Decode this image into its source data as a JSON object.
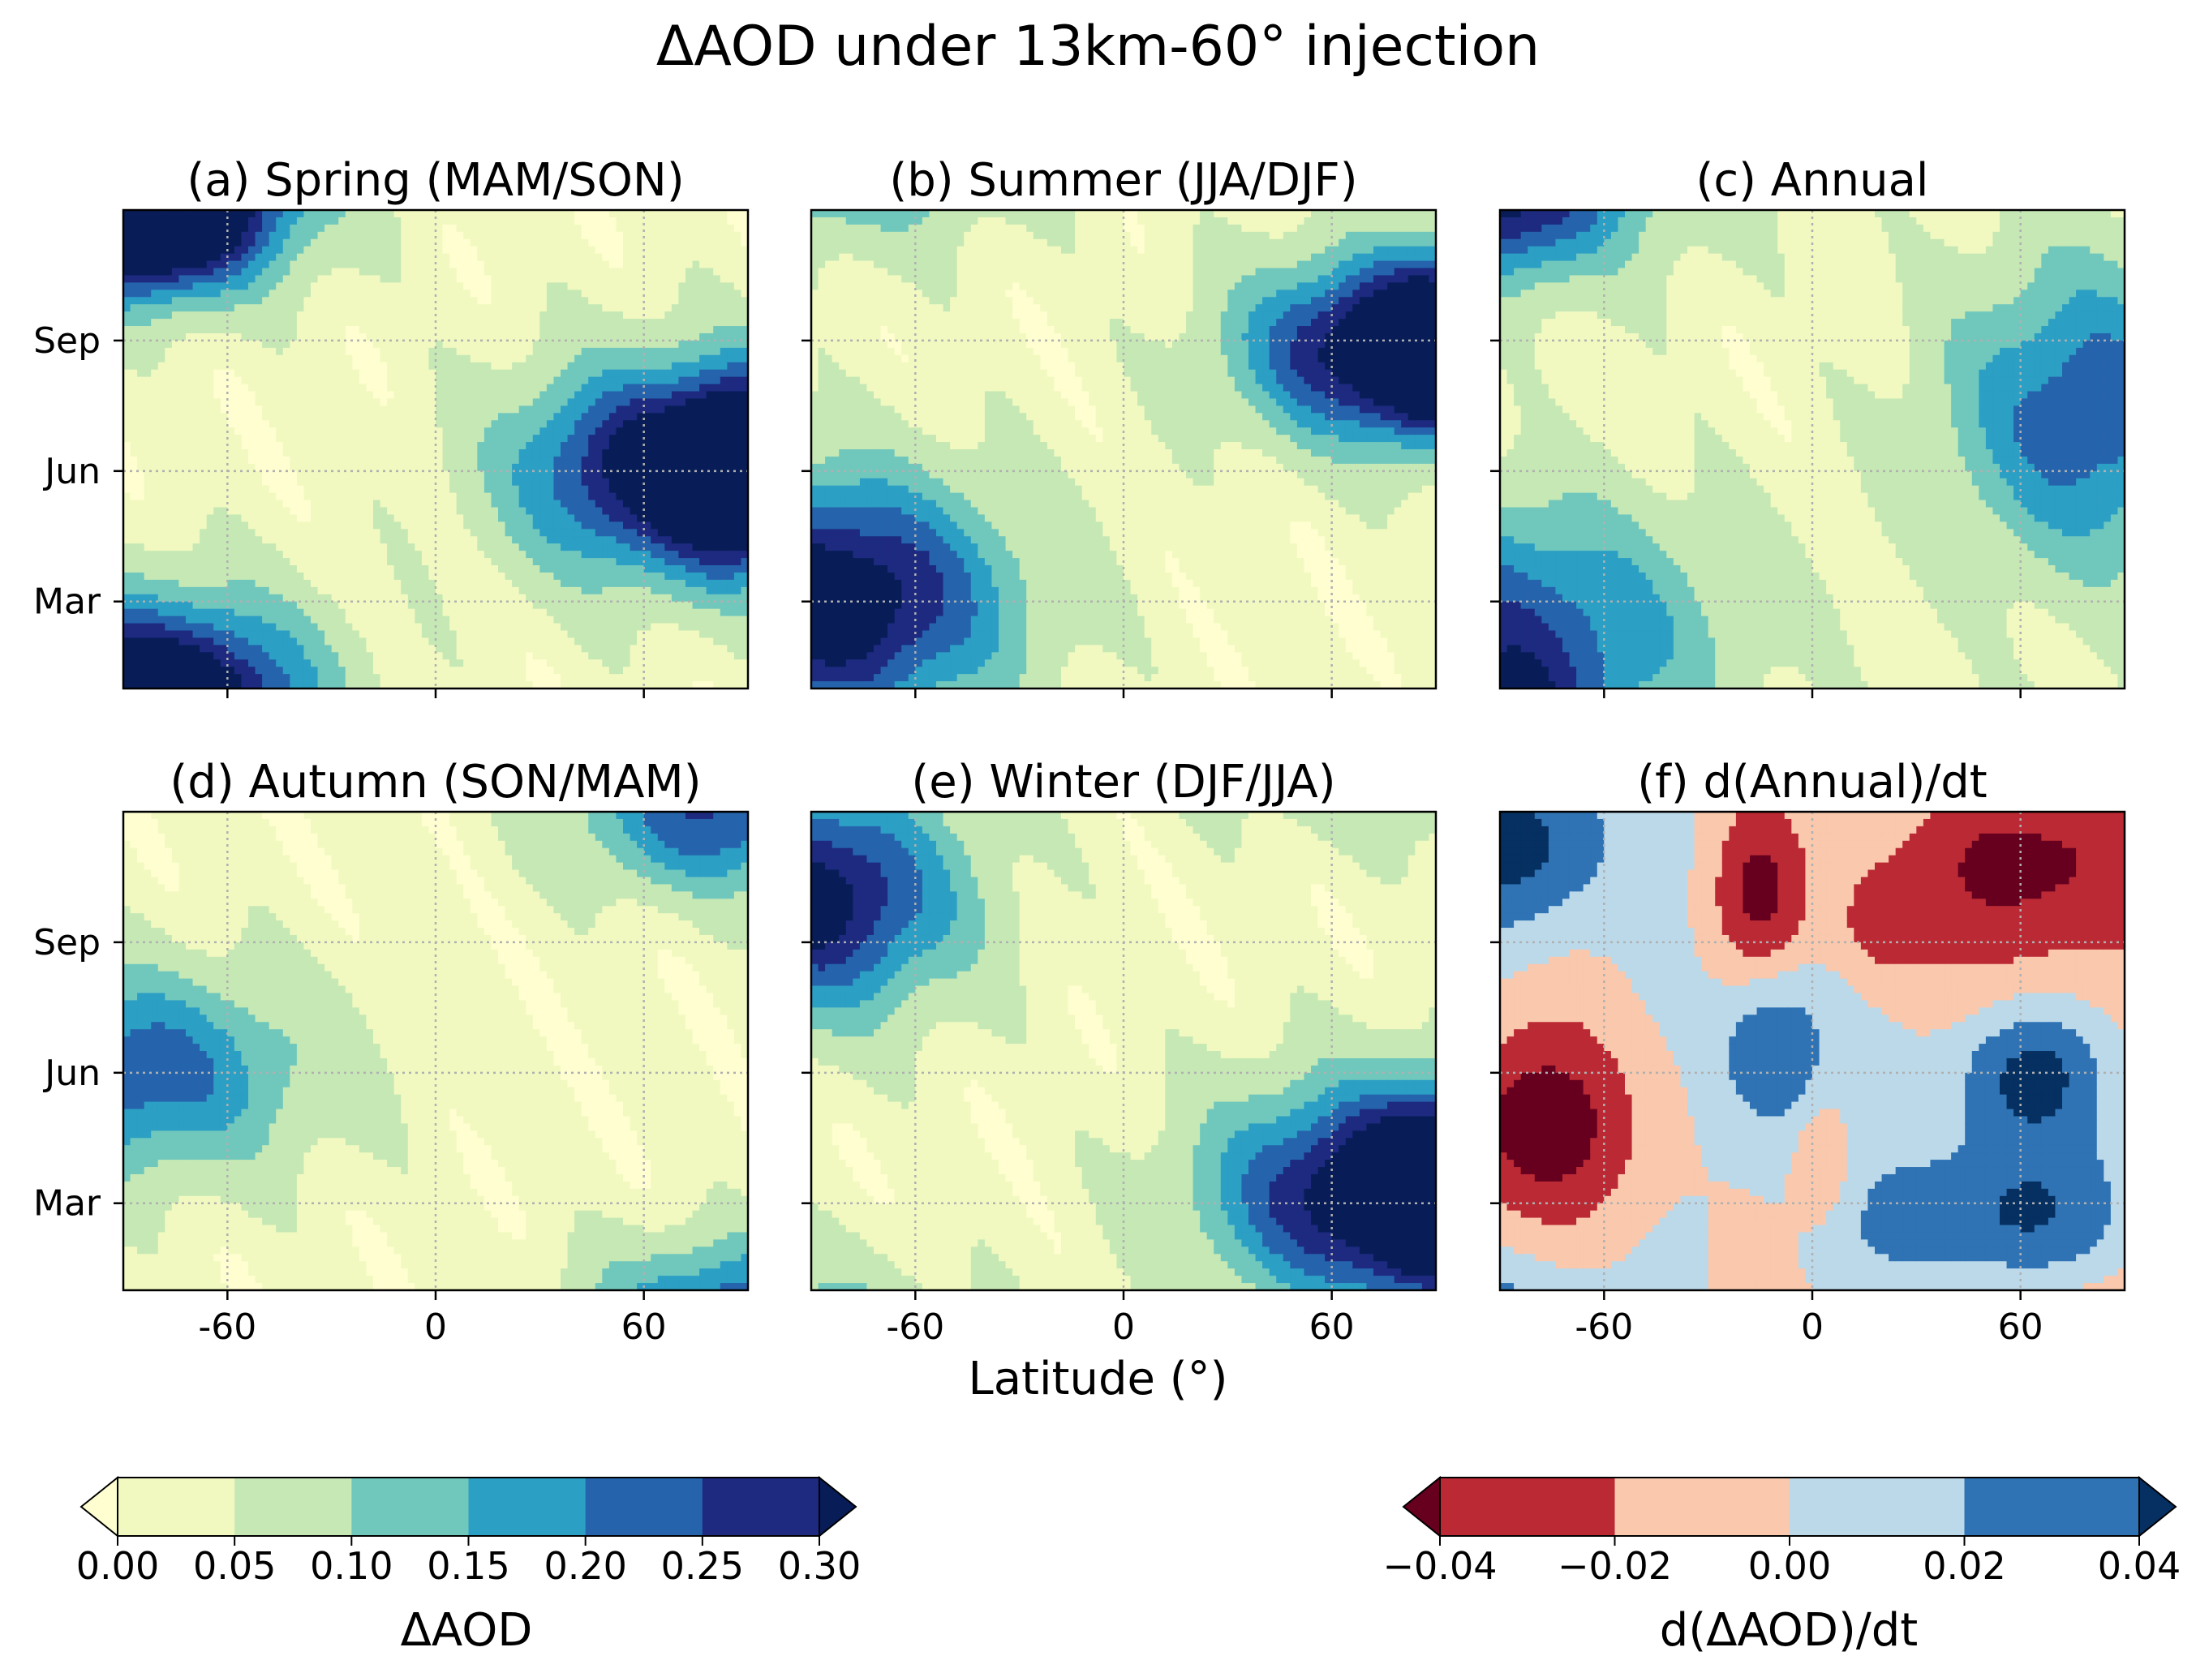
{
  "figure": {
    "title": "ΔAOD under 13km-60° injection",
    "xlabel": "Latitude (°)"
  },
  "colors": {
    "aod_levels": [
      "#fffed0",
      "#f1f9c0",
      "#c6e8b5",
      "#70c8bd",
      "#2c9fc4",
      "#2564ac",
      "#1d2a80",
      "#081d58"
    ],
    "rate_levels": [
      "#67001f",
      "#bb2a34",
      "#f9c8ad",
      "#bcd9ea",
      "#2f73b4",
      "#053061"
    ],
    "grid": "#b0b0b0"
  },
  "colorbars": {
    "aod": {
      "label": "ΔAOD",
      "ticks": [
        "0.00",
        "0.05",
        "0.10",
        "0.15",
        "0.20",
        "0.25",
        "0.30"
      ],
      "extend": "both"
    },
    "rate": {
      "label": "d(ΔAOD)/dt",
      "ticks": [
        "−0.04",
        "−0.02",
        "0.00",
        "0.02",
        "0.04"
      ],
      "extend": "both"
    }
  },
  "chart_data": [
    {
      "type": "heatmap",
      "title": "(a) Spring (MAM/SON)",
      "xlim": [
        -90,
        90
      ],
      "ylim": [
        0,
        11
      ],
      "xticks": [
        -60,
        0,
        60
      ],
      "xtick_labels": [
        "-60",
        "0",
        "60"
      ],
      "yticks": [
        2,
        5,
        8
      ],
      "ytick_labels": [
        "Mar",
        "Jun",
        "Sep"
      ],
      "grid": true,
      "colorbar": "aod",
      "features": [
        {
          "lat": -85,
          "month": 10.6,
          "value": 0.32,
          "rlat": 32,
          "rmonth": 1.6
        },
        {
          "lat": -80,
          "month": 0,
          "value": 0.32,
          "rlat": 42,
          "rmonth": 2.1
        },
        {
          "lat": 68,
          "month": 5,
          "value": 0.34,
          "rlat": 42,
          "rmonth": 2.3
        },
        {
          "lat": 90,
          "month": 5,
          "value": 0.3,
          "rlat": 20,
          "rmonth": 2.0
        }
      ]
    },
    {
      "type": "heatmap",
      "title": "(b) Summer (JJA/DJF)",
      "xlim": [
        -90,
        90
      ],
      "ylim": [
        0,
        11
      ],
      "xticks": [
        -60,
        0,
        60
      ],
      "xtick_labels": [
        "-60",
        "0",
        "60"
      ],
      "yticks": [
        2,
        5,
        8
      ],
      "ytick_labels": [
        "Mar",
        "Jun",
        "Sep"
      ],
      "grid": true,
      "colorbar": "aod",
      "features": [
        {
          "lat": -85,
          "month": 2.0,
          "value": 0.34,
          "rlat": 48,
          "rmonth": 2.7
        },
        {
          "lat": 74,
          "month": 7.8,
          "value": 0.33,
          "rlat": 38,
          "rmonth": 2.0
        },
        {
          "lat": 90,
          "month": 7.8,
          "value": 0.28,
          "rlat": 16,
          "rmonth": 1.8
        }
      ]
    },
    {
      "type": "heatmap",
      "title": "(c) Annual",
      "xlim": [
        -90,
        90
      ],
      "ylim": [
        0,
        11
      ],
      "xticks": [
        -60,
        0,
        60
      ],
      "xtick_labels": [
        "-60",
        "0",
        "60"
      ],
      "yticks": [
        2,
        5,
        8
      ],
      "ytick_labels": [
        "Mar",
        "Jun",
        "Sep"
      ],
      "grid": true,
      "colorbar": "aod",
      "features": [
        {
          "lat": -90,
          "month": 1.2,
          "value": 0.22,
          "rlat": 58,
          "rmonth": 3.0
        },
        {
          "lat": -90,
          "month": 11,
          "value": 0.17,
          "rlat": 28,
          "rmonth": 1.6
        },
        {
          "lat": 80,
          "month": 6.3,
          "value": 0.21,
          "rlat": 40,
          "rmonth": 3.4
        }
      ]
    },
    {
      "type": "heatmap",
      "title": "(d) Autumn (SON/MAM)",
      "xlim": [
        -90,
        90
      ],
      "ylim": [
        0,
        11
      ],
      "xticks": [
        -60,
        0,
        60
      ],
      "xtick_labels": [
        "-60",
        "0",
        "60"
      ],
      "yticks": [
        2,
        5,
        8
      ],
      "ytick_labels": [
        "Mar",
        "Jun",
        "Sep"
      ],
      "grid": true,
      "colorbar": "aod",
      "features": [
        {
          "lat": -90,
          "month": 5,
          "value": 0.21,
          "rlat": 50,
          "rmonth": 2.2
        },
        {
          "lat": 80,
          "month": 10.6,
          "value": 0.17,
          "rlat": 38,
          "rmonth": 1.5
        },
        {
          "lat": 90,
          "month": 0,
          "value": 0.12,
          "rlat": 40,
          "rmonth": 1.4
        }
      ]
    },
    {
      "type": "heatmap",
      "title": "(e) Winter (DJF/JJA)",
      "xlim": [
        -90,
        90
      ],
      "ylim": [
        0,
        11
      ],
      "xticks": [
        -60,
        0,
        60
      ],
      "xtick_labels": [
        "-60",
        "0",
        "60"
      ],
      "yticks": [
        2,
        5,
        8
      ],
      "ytick_labels": [
        "Mar",
        "Jun",
        "Sep"
      ],
      "grid": true,
      "colorbar": "aod",
      "features": [
        {
          "lat": -90,
          "month": 9,
          "value": 0.31,
          "rlat": 40,
          "rmonth": 2.5
        },
        {
          "lat": 72,
          "month": 2.2,
          "value": 0.33,
          "rlat": 44,
          "rmonth": 2.4
        },
        {
          "lat": 90,
          "month": 2.2,
          "value": 0.28,
          "rlat": 18,
          "rmonth": 2.0
        }
      ]
    },
    {
      "type": "heatmap",
      "title": "(f) d(Annual)/dt",
      "xlim": [
        -90,
        90
      ],
      "ylim": [
        0,
        11
      ],
      "xticks": [
        -60,
        0,
        60
      ],
      "xtick_labels": [
        "-60",
        "0",
        "60"
      ],
      "yticks": [
        2,
        5,
        8
      ],
      "ytick_labels": [
        "Mar",
        "Jun",
        "Sep"
      ],
      "grid": true,
      "colorbar": "rate",
      "features": [
        {
          "lat": -85,
          "month": 10.3,
          "value": 0.05,
          "rlat": 28,
          "rmonth": 2.0
        },
        {
          "lat": -80,
          "month": 3.8,
          "value": -0.05,
          "rlat": 32,
          "rmonth": 2.3
        },
        {
          "lat": -15,
          "month": 9.0,
          "value": -0.045,
          "rlat": 14,
          "rmonth": 2.2
        },
        {
          "lat": 65,
          "month": 10.0,
          "value": -0.05,
          "rlat": 38,
          "rmonth": 2.8
        },
        {
          "lat": 20,
          "month": 8.5,
          "value": -0.03,
          "rlat": 14,
          "rmonth": 1.4
        },
        {
          "lat": -12,
          "month": 5.6,
          "value": 0.045,
          "rlat": 16,
          "rmonth": 2.2
        },
        {
          "lat": 55,
          "month": 1.5,
          "value": 0.05,
          "rlat": 40,
          "rmonth": 2.0
        },
        {
          "lat": 62,
          "month": 5.0,
          "value": 0.045,
          "rlat": 22,
          "rmonth": 1.5
        },
        {
          "lat": 3,
          "month": 3.0,
          "value": -0.03,
          "rlat": 8,
          "rmonth": 1.4
        }
      ]
    }
  ]
}
